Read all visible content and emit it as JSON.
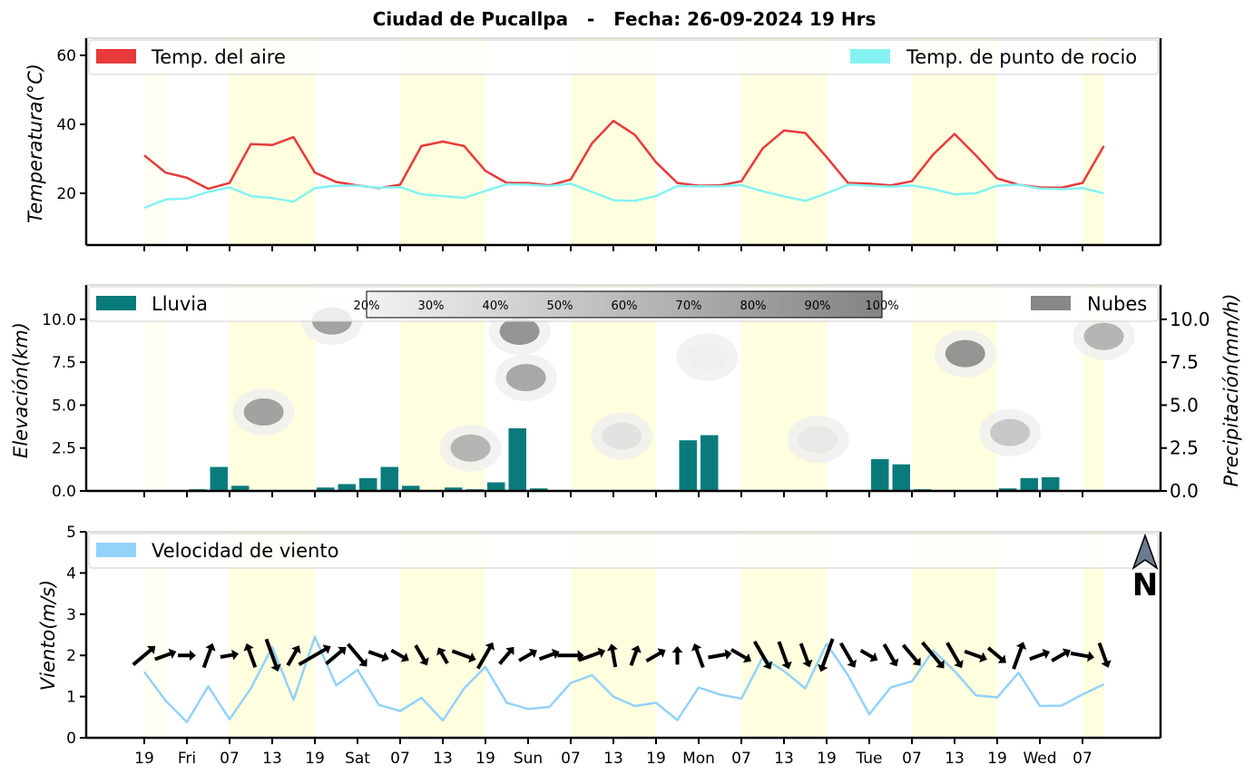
{
  "title": "Ciudad de Pucallpa   -   Fecha: 26-09-2024 19 Hrs",
  "x_tick_labels": [
    "19",
    "Fri",
    "07",
    "13",
    "19",
    "Sat",
    "07",
    "13",
    "19",
    "Sun",
    "07",
    "13",
    "19",
    "Mon",
    "07",
    "13",
    "19",
    "Tue",
    "07",
    "13",
    "19",
    "Wed",
    "07"
  ],
  "colors": {
    "temp_air": "#e83a3a",
    "temp_dew": "#84f2f2",
    "rain": "#0a7b7b",
    "clouds": "#888888",
    "wind_speed": "#93d2fa",
    "daylight_band": "#ffffe0"
  },
  "chart_data": [
    {
      "type": "line",
      "x_step_hours": 3,
      "ylabel": "Temperatura(°C)",
      "ylim": [
        5,
        65
      ],
      "yticks": [
        20,
        40,
        60
      ],
      "grid": false,
      "legend_placement": "top",
      "series": [
        {
          "name": "Temp. del aire",
          "values": [
            31,
            26,
            24.5,
            21.3,
            23,
            34.3,
            34,
            36.3,
            26,
            23.3,
            22.3,
            21.5,
            22.5,
            33.7,
            35,
            33.7,
            26.5,
            23,
            23,
            22.3,
            24,
            34.5,
            41,
            37,
            29,
            23,
            22.2,
            22.3,
            23.5,
            33,
            38.2,
            37.5,
            30.5,
            23,
            22.8,
            22.3,
            23.5,
            31.3,
            37.2,
            31,
            24.3,
            22.5,
            21.7,
            21.6,
            23,
            33.7
          ]
        },
        {
          "name": "Temp. de punto de rocio",
          "values": [
            15.8,
            18.2,
            18.5,
            20.4,
            21.7,
            19.2,
            18.6,
            17.6,
            21.5,
            22.2,
            22.2,
            21.6,
            21.8,
            19.7,
            19.2,
            18.7,
            20.7,
            22.6,
            22.5,
            22.1,
            22.8,
            20.4,
            18,
            17.8,
            19.2,
            22.1,
            22,
            22,
            22.4,
            20.6,
            19.1,
            17.8,
            20,
            22.5,
            22.2,
            21.9,
            22.3,
            21.2,
            19.7,
            20,
            22.2,
            22.5,
            21.4,
            21.2,
            21.5,
            20
          ]
        }
      ]
    },
    {
      "type": "bar",
      "x_step_hours": 3,
      "ylabel": "Elevación(km)",
      "ylabel_right": "Precipitación(mm/h)",
      "ylim": [
        0,
        12
      ],
      "yticks": [
        0.0,
        2.5,
        5.0,
        7.5,
        10.0
      ],
      "yticks_right": [
        "0.0",
        "2.5",
        "5.0",
        "7.5",
        "10.0"
      ],
      "series": [
        {
          "name": "Lluvia",
          "values": [
            0,
            0,
            0.1,
            1.4,
            0.3,
            0,
            0,
            0,
            0.2,
            0.4,
            0.75,
            1.4,
            0.3,
            0,
            0.2,
            0.1,
            0.5,
            3.65,
            0.15,
            0,
            0,
            0,
            0,
            0.05,
            0,
            2.95,
            3.25,
            0,
            0,
            0,
            0,
            0,
            0,
            0,
            1.85,
            1.55,
            0.1,
            0,
            0,
            0,
            0.15,
            0.75,
            0.8,
            0,
            0,
            0
          ]
        },
        {
          "name": "Nubes",
          "values": []
        }
      ],
      "cloud_colorbar_labels": [
        "20%",
        "30%",
        "40%",
        "50%",
        "60%",
        "70%",
        "80%",
        "90%",
        "100%"
      ],
      "cloud_areas_km": [
        {
          "x_index": 8.8,
          "elev_km": 9.9,
          "cover_pct": 85
        },
        {
          "x_index": 5.6,
          "elev_km": 4.6,
          "cover_pct": 85
        },
        {
          "x_index": 17.6,
          "elev_km": 9.3,
          "cover_pct": 95
        },
        {
          "x_index": 17.9,
          "elev_km": 6.6,
          "cover_pct": 80
        },
        {
          "x_index": 15.3,
          "elev_km": 2.5,
          "cover_pct": 70
        },
        {
          "x_index": 22.4,
          "elev_km": 3.2,
          "cover_pct": 35
        },
        {
          "x_index": 26.4,
          "elev_km": 7.8,
          "cover_pct": 25
        },
        {
          "x_index": 31.6,
          "elev_km": 3.0,
          "cover_pct": 30
        },
        {
          "x_index": 38.5,
          "elev_km": 8.0,
          "cover_pct": 95
        },
        {
          "x_index": 40.6,
          "elev_km": 3.4,
          "cover_pct": 55
        },
        {
          "x_index": 45.0,
          "elev_km": 9.0,
          "cover_pct": 70
        }
      ]
    },
    {
      "type": "line",
      "x_step_hours": 3,
      "ylabel": "Viento(m/s)",
      "ylim": [
        0,
        5
      ],
      "yticks": [
        0,
        1,
        2,
        3,
        4,
        5
      ],
      "series": [
        {
          "name": "Velocidad de viento",
          "values": [
            1.6,
            0.9,
            0.38,
            1.25,
            0.45,
            1.2,
            2.2,
            0.92,
            2.45,
            1.27,
            1.65,
            0.8,
            0.65,
            0.97,
            0.42,
            1.2,
            1.72,
            0.85,
            0.7,
            0.75,
            1.33,
            1.52,
            1.0,
            0.77,
            0.85,
            0.43,
            1.22,
            1.05,
            0.95,
            1.95,
            1.62,
            1.2,
            2.28,
            1.52,
            0.57,
            1.22,
            1.37,
            2.12,
            1.62,
            1.03,
            0.98,
            1.58,
            0.77,
            0.78,
            1.05,
            1.3
          ]
        }
      ],
      "wind_direction_from_deg": [
        230,
        250,
        270,
        200,
        260,
        160,
        340,
        210,
        240,
        230,
        320,
        290,
        300,
        330,
        150,
        290,
        210,
        220,
        240,
        250,
        270,
        250,
        170,
        200,
        240,
        180,
        160,
        260,
        300,
        330,
        340,
        340,
        20,
        330,
        300,
        330,
        320,
        320,
        330,
        290,
        310,
        200,
        250,
        240,
        280,
        340
      ],
      "north_label": "N"
    }
  ]
}
